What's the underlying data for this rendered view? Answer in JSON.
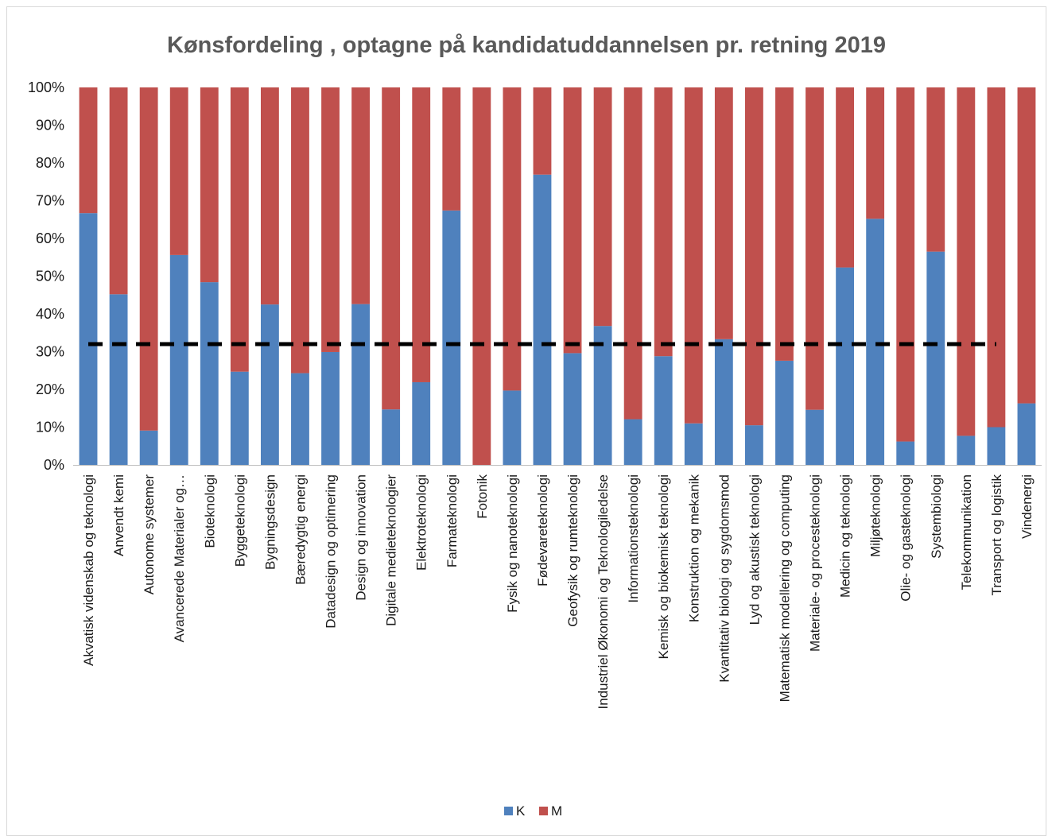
{
  "chart_data": {
    "type": "bar",
    "stacked": true,
    "percent_stacked": true,
    "title": "Kønsfordeling , optagne på kandidatuddannelsen pr. retning 2019",
    "xlabel": "",
    "ylabel": "",
    "ylim": [
      0,
      100
    ],
    "yticks": [
      "0%",
      "10%",
      "20%",
      "30%",
      "40%",
      "50%",
      "60%",
      "70%",
      "80%",
      "90%",
      "100%"
    ],
    "grid": false,
    "legend_position": "bottom",
    "categories": [
      "Akvatisk videnskab og teknologi",
      "Anvendt kemi",
      "Autonome systemer",
      "Avancerede Materialer og…",
      "Bioteknologi",
      "Byggeteknologi",
      "Bygningsdesign",
      "Bæredygtig energi",
      "Datadesign og optimering",
      "Design og innovation",
      "Digitale medieteknologier",
      "Elektroteknologi",
      "Farmateknologi",
      "Fotonik",
      "Fysik og nanoteknologi",
      "Fødevareteknologi",
      "Geofysik og rumteknologi",
      "Industriel Økonomi og Teknologiledelse",
      "Informationsteknologi",
      "Kemisk og biokemisk teknologi",
      "Konstruktion og mekanik",
      "Kvantitativ biologi og sygdomsmod",
      "Lyd og akustisk teknologi",
      "Matematisk modellering og computing",
      "Materiale- og procesteknologi",
      "Medicin og teknologi",
      "Miljøteknologi",
      "Olie- og gasteknologi",
      "Systembiologi",
      "Telekommunikation",
      "Transport og logistik",
      "Vindenergi"
    ],
    "series": [
      {
        "name": "K",
        "color": "#4f81bd",
        "values": [
          66.7,
          45.2,
          9.1,
          55.6,
          48.4,
          24.7,
          42.5,
          24.3,
          29.9,
          42.6,
          14.7,
          21.9,
          67.4,
          0,
          19.7,
          76.9,
          29.6,
          36.8,
          12.1,
          28.8,
          11.0,
          33.3,
          10.5,
          27.6,
          14.6,
          52.3,
          65.2,
          6.2,
          56.5,
          7.7,
          10.0,
          16.3
        ]
      },
      {
        "name": "M",
        "color": "#c0504d",
        "values": [
          33.3,
          54.8,
          90.9,
          44.4,
          51.6,
          75.3,
          57.5,
          75.7,
          70.1,
          57.4,
          85.3,
          78.1,
          32.6,
          100,
          80.3,
          23.1,
          70.4,
          63.2,
          87.9,
          71.2,
          89.0,
          66.7,
          89.5,
          72.4,
          85.4,
          47.7,
          34.8,
          93.8,
          43.5,
          92.3,
          90.0,
          83.7
        ]
      }
    ],
    "reference_line": {
      "value": 32,
      "style": "dashed",
      "color": "#000000"
    }
  }
}
